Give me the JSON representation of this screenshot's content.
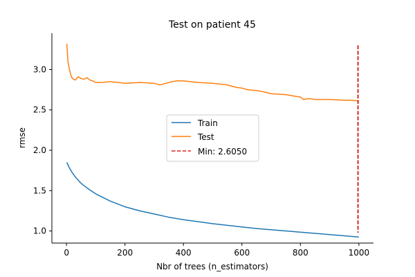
{
  "chart_data": {
    "type": "line",
    "title": "Test on patient 45",
    "xlabel": "Nbr of trees (n_estimators)",
    "ylabel": "rmse",
    "xlim": [
      -50,
      1050
    ],
    "ylim": [
      0.85,
      3.45
    ],
    "x_ticks": [
      0,
      200,
      400,
      600,
      800,
      1000
    ],
    "y_ticks": [
      1.0,
      1.5,
      2.0,
      2.5,
      3.0
    ],
    "x_tick_labels": [
      "0",
      "200",
      "400",
      "600",
      "800",
      "1000"
    ],
    "y_tick_labels": [
      "1.0",
      "1.5",
      "2.0",
      "2.5",
      "3.0"
    ],
    "grid": false,
    "legend_position": "center",
    "series": [
      {
        "name": "Train",
        "color": "#1f77b4",
        "style": "solid",
        "x": [
          1,
          10,
          20,
          30,
          40,
          50,
          75,
          100,
          150,
          200,
          250,
          300,
          350,
          400,
          450,
          500,
          550,
          600,
          650,
          700,
          750,
          800,
          850,
          900,
          950,
          1000
        ],
        "y": [
          1.85,
          1.78,
          1.72,
          1.67,
          1.63,
          1.59,
          1.52,
          1.46,
          1.37,
          1.3,
          1.25,
          1.21,
          1.17,
          1.14,
          1.115,
          1.09,
          1.07,
          1.05,
          1.03,
          1.015,
          1.0,
          0.985,
          0.97,
          0.955,
          0.94,
          0.925
        ]
      },
      {
        "name": "Test",
        "color": "#ff7f0e",
        "style": "solid",
        "x": [
          1,
          5,
          10,
          15,
          20,
          30,
          40,
          50,
          60,
          70,
          80,
          90,
          100,
          120,
          150,
          200,
          250,
          300,
          320,
          340,
          360,
          380,
          400,
          450,
          500,
          550,
          580,
          600,
          620,
          650,
          680,
          700,
          750,
          780,
          800,
          810,
          830,
          850,
          900,
          950,
          980,
          1000
        ],
        "y": [
          3.32,
          3.1,
          3.0,
          2.93,
          2.89,
          2.87,
          2.91,
          2.89,
          2.88,
          2.9,
          2.87,
          2.86,
          2.84,
          2.84,
          2.85,
          2.83,
          2.84,
          2.83,
          2.81,
          2.83,
          2.85,
          2.86,
          2.86,
          2.84,
          2.83,
          2.81,
          2.78,
          2.77,
          2.75,
          2.74,
          2.72,
          2.7,
          2.69,
          2.67,
          2.66,
          2.63,
          2.64,
          2.63,
          2.63,
          2.62,
          2.62,
          2.61
        ]
      }
    ],
    "vline": {
      "label": "Min: 2.6050",
      "x": 997,
      "color": "#d62728",
      "style": "dashed"
    }
  }
}
